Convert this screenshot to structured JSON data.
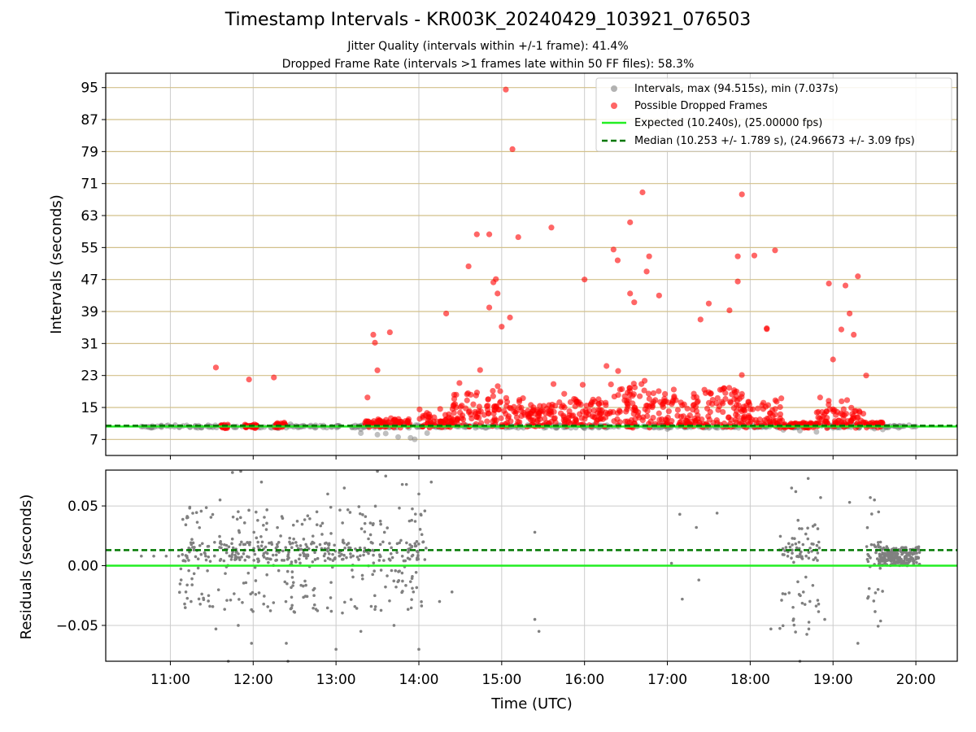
{
  "header": {
    "title": "Timestamp Intervals - KR003K_20240429_103921_076503",
    "subtitle1": "Jitter Quality (intervals within +/-1 frame): 41.4%",
    "subtitle2": "Dropped Frame Rate (intervals >1 frames late within 50 FF files): 58.3%"
  },
  "colors": {
    "intervals": "#808080",
    "dropped": "#ff0000",
    "expected": "#22ee22",
    "median": "#007700",
    "hgrid_top": "#d2c08a",
    "grid": "#cccccc"
  },
  "chart_data": [
    {
      "type": "scatter",
      "ylabel": "Intervals (seconds)",
      "xlim": [
        10.22,
        20.5
      ],
      "ylim": [
        3.0,
        98.6
      ],
      "yticks": [
        7,
        15,
        23,
        31,
        39,
        47,
        55,
        63,
        71,
        79,
        87,
        95
      ],
      "ytick_labels": [
        "7",
        "15",
        "23",
        "31",
        "39",
        "47",
        "55",
        "63",
        "71",
        "79",
        "87",
        "95"
      ],
      "legend_position": "top-right",
      "series": [
        {
          "name": "Intervals, max (94.515s), min (7.037s)",
          "kind": "points",
          "note_range_x": [
            10.65,
            20.02
          ],
          "points": [
            [
              10.65,
              10.25
            ],
            [
              11.0,
              10.24
            ],
            [
              11.3,
              10.26
            ],
            [
              11.5,
              10.25
            ],
            [
              11.8,
              10.24
            ],
            [
              12.3,
              9.8
            ],
            [
              12.45,
              10.8
            ],
            [
              13.3,
              9.6
            ],
            [
              13.3,
              8.6
            ],
            [
              13.5,
              8.2
            ],
            [
              13.6,
              8.5
            ],
            [
              13.75,
              7.6
            ],
            [
              13.9,
              7.4
            ],
            [
              13.95,
              7.04
            ],
            [
              14.1,
              8.6
            ],
            [
              15.2,
              9.9
            ],
            [
              16.0,
              9.8
            ],
            [
              17.0,
              9.6
            ],
            [
              18.4,
              9.4
            ],
            [
              18.6,
              9.2
            ],
            [
              18.8,
              8.9
            ],
            [
              19.1,
              10.4
            ],
            [
              19.5,
              9.7
            ],
            [
              19.6,
              9.5
            ],
            [
              19.8,
              10.25
            ],
            [
              20.0,
              10.25
            ]
          ]
        },
        {
          "name": "Possible Dropped Frames",
          "kind": "points",
          "points": [
            [
              11.55,
              25.0
            ],
            [
              11.95,
              22.0
            ],
            [
              12.25,
              22.5
            ],
            [
              13.45,
              33.2
            ],
            [
              13.47,
              31.2
            ],
            [
              13.5,
              24.3
            ],
            [
              13.65,
              33.8
            ],
            [
              13.38,
              17.5
            ],
            [
              14.33,
              38.5
            ],
            [
              14.6,
              50.3
            ],
            [
              14.7,
              58.3
            ],
            [
              14.85,
              58.3
            ],
            [
              14.9,
              46.3
            ],
            [
              14.93,
              47.1
            ],
            [
              15.05,
              94.5
            ],
            [
              15.13,
              79.6
            ],
            [
              15.2,
              57.6
            ],
            [
              15.0,
              35.2
            ],
            [
              15.1,
              37.5
            ],
            [
              14.85,
              40.0
            ],
            [
              14.95,
              43.5
            ],
            [
              15.6,
              60.0
            ],
            [
              16.0,
              47.0
            ],
            [
              16.55,
              61.3
            ],
            [
              16.7,
              68.8
            ],
            [
              16.78,
              52.8
            ],
            [
              16.75,
              49.0
            ],
            [
              16.9,
              43.0
            ],
            [
              17.9,
              68.3
            ],
            [
              18.05,
              53.0
            ],
            [
              17.85,
              52.8
            ],
            [
              17.85,
              46.5
            ],
            [
              18.3,
              54.3
            ],
            [
              18.95,
              46.0
            ],
            [
              19.15,
              45.5
            ],
            [
              19.3,
              47.8
            ],
            [
              19.2,
              38.5
            ],
            [
              16.35,
              54.5
            ],
            [
              16.4,
              51.8
            ],
            [
              16.55,
              43.5
            ],
            [
              16.6,
              41.3
            ],
            [
              17.5,
              41.0
            ],
            [
              17.75,
              39.3
            ],
            [
              17.4,
              37.0
            ],
            [
              18.2,
              34.6
            ],
            [
              18.2,
              34.8
            ],
            [
              19.4,
              23.0
            ],
            [
              19.25,
              33.2
            ],
            [
              19.0,
              27.0
            ],
            [
              19.1,
              34.5
            ]
          ],
          "dense_bands": [
            [
              11.6,
              11.7,
              10.3
            ],
            [
              11.9,
              12.05,
              10.3
            ],
            [
              12.25,
              12.4,
              10.6
            ],
            [
              13.35,
              13.9,
              11.2
            ],
            [
              14.0,
              14.4,
              11.8
            ],
            [
              14.4,
              15.0,
              15.0
            ],
            [
              15.0,
              15.6,
              13.0
            ],
            [
              15.6,
              16.2,
              14.0
            ],
            [
              16.2,
              16.8,
              16.0
            ],
            [
              16.8,
              17.4,
              14.5
            ],
            [
              17.4,
              17.9,
              15.5
            ],
            [
              17.9,
              18.4,
              13.5
            ],
            [
              18.4,
              18.8,
              10.6
            ],
            [
              18.8,
              19.4,
              13.0
            ],
            [
              19.4,
              19.6,
              10.8
            ]
          ]
        },
        {
          "name": "Expected (10.240s), (25.00000 fps)",
          "kind": "hline",
          "y": 10.24
        },
        {
          "name": "Median (10.253 +/- 1.789 s), (24.96673 +/- 3.09 fps)",
          "kind": "hline",
          "y": 10.253
        }
      ]
    },
    {
      "type": "scatter",
      "ylabel": "Residuals (seconds)",
      "xlabel": "Time (UTC)",
      "xlim": [
        10.22,
        20.5
      ],
      "ylim": [
        -0.08,
        0.08
      ],
      "yticks": [
        -0.05,
        0.0,
        0.05
      ],
      "ytick_labels": [
        "−0.05",
        "0.00",
        "0.05"
      ],
      "xticks": [
        11,
        12,
        13,
        14,
        15,
        16,
        17,
        18,
        19,
        20
      ],
      "xtick_labels": [
        "11:00",
        "12:00",
        "13:00",
        "14:00",
        "15:00",
        "16:00",
        "17:00",
        "18:00",
        "19:00",
        "20:00"
      ],
      "series": [
        {
          "name": "",
          "kind": "points",
          "points": [
            [
              10.65,
              0.008
            ],
            [
              10.8,
              0.008
            ],
            [
              10.95,
              0.008
            ],
            [
              11.1,
              0.008
            ],
            [
              11.2,
              0.008
            ],
            [
              11.2,
              0.04
            ],
            [
              11.25,
              -0.03
            ],
            [
              11.55,
              -0.053
            ],
            [
              11.6,
              0.055
            ],
            [
              11.7,
              -0.08
            ],
            [
              11.75,
              0.078
            ],
            [
              11.85,
              0.079
            ],
            [
              11.82,
              -0.05
            ],
            [
              11.98,
              -0.065
            ],
            [
              12.1,
              0.07
            ],
            [
              12.4,
              -0.065
            ],
            [
              12.42,
              -0.08
            ],
            [
              12.9,
              0.06
            ],
            [
              13.0,
              -0.07
            ],
            [
              13.1,
              0.065
            ],
            [
              13.3,
              -0.055
            ],
            [
              13.5,
              0.079
            ],
            [
              13.6,
              0.075
            ],
            [
              13.7,
              -0.05
            ],
            [
              13.8,
              0.068
            ],
            [
              13.85,
              0.068
            ],
            [
              14.0,
              0.06
            ],
            [
              14.0,
              -0.07
            ],
            [
              14.15,
              0.07
            ],
            [
              14.25,
              -0.03
            ],
            [
              14.4,
              -0.022
            ],
            [
              15.4,
              0.028
            ],
            [
              15.4,
              -0.045
            ],
            [
              15.45,
              -0.055
            ],
            [
              17.05,
              0.002
            ],
            [
              17.15,
              0.043
            ],
            [
              17.18,
              -0.028
            ],
            [
              17.35,
              0.032
            ],
            [
              17.38,
              -0.012
            ],
            [
              17.6,
              0.044
            ],
            [
              18.25,
              -0.053
            ],
            [
              18.5,
              0.065
            ],
            [
              18.55,
              0.062
            ],
            [
              18.6,
              -0.08
            ],
            [
              18.7,
              0.073
            ],
            [
              18.85,
              0.057
            ],
            [
              18.9,
              -0.045
            ],
            [
              19.2,
              0.053
            ],
            [
              19.3,
              -0.065
            ],
            [
              19.45,
              0.057
            ],
            [
              19.5,
              0.055
            ],
            [
              19.55,
              0.045
            ]
          ],
          "dense_bands": [
            [
              11.1,
              14.1,
              -0.04,
              0.05
            ],
            [
              18.35,
              18.85,
              -0.06,
              0.04
            ],
            [
              19.4,
              19.6,
              -0.06,
              0.045
            ],
            [
              19.55,
              20.05,
              0.0,
              0.016
            ]
          ]
        },
        {
          "name": "",
          "kind": "hline",
          "y": 0.0
        },
        {
          "name": "",
          "kind": "hline",
          "y": 0.013
        }
      ]
    }
  ]
}
